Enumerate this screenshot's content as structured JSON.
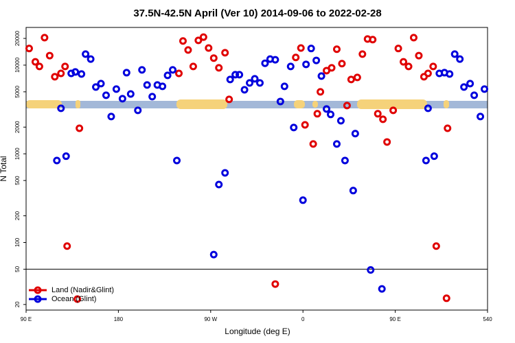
{
  "chart_data": {
    "type": "scatter",
    "title": "37.5N-42.5N April (Ver 10)   2014-09-06 to 2022-02-28",
    "x_label": "Longitude (deg E)",
    "y_label": "N Total",
    "log_y": true,
    "legend": "bottom-left",
    "reference_line": 50,
    "xlim": [
      90,
      540
    ],
    "xticks": [
      {
        "value": 90,
        "label": "90 E"
      },
      180,
      {
        "value": 270,
        "label": "90 W"
      },
      {
        "value": 360,
        "label": "0"
      },
      {
        "value": 450,
        "label": "90 E"
      },
      540
    ],
    "ylim": [
      17.3,
      26600
    ],
    "yticks": [
      20,
      50,
      100,
      200,
      500,
      1000,
      2000,
      5000,
      10000,
      20000
    ],
    "series": [
      {
        "name": "Land (Nadir&Glint)",
        "color": "#e00000",
        "x": [
          93,
          99,
          103,
          108,
          113,
          118,
          124,
          128,
          130,
          140,
          142,
          239,
          243,
          248,
          253,
          258,
          263,
          268,
          273,
          278,
          284,
          288,
          333,
          353,
          358,
          362,
          370,
          374,
          377,
          383,
          388,
          393,
          398,
          403,
          407,
          413,
          418,
          423,
          428,
          433,
          438,
          442,
          448,
          453,
          458,
          463,
          468,
          473,
          478,
          482,
          487,
          490,
          500,
          501
        ],
        "values": [
          15400,
          10900,
          9660,
          20400,
          12800,
          7390,
          8070,
          9660,
          91,
          23,
          1940,
          8070,
          18700,
          14800,
          9660,
          19000,
          20700,
          15600,
          12000,
          9320,
          13800,
          4110,
          34,
          12200,
          15600,
          2120,
          1290,
          2830,
          5000,
          8670,
          9320,
          15100,
          10400,
          3500,
          6890,
          7260,
          13300,
          19700,
          19400,
          2830,
          2450,
          1360,
          3090,
          15400,
          10900,
          9660,
          20400,
          12800,
          7390,
          8070,
          9660,
          91,
          23.5,
          1940
        ]
      },
      {
        "name": "Ocean (Glint)",
        "color": "#0000dd",
        "x": [
          120,
          124,
          129,
          134,
          138,
          144,
          148,
          153,
          158,
          163,
          168,
          173,
          178,
          184,
          188,
          192,
          199,
          203,
          208,
          213,
          218,
          223,
          228,
          233,
          237,
          273,
          278,
          284,
          289,
          294,
          298,
          303,
          308,
          313,
          318,
          323,
          328,
          333,
          338,
          342,
          348,
          351,
          360,
          363,
          368,
          373,
          378,
          383,
          387,
          393,
          397,
          401,
          409,
          411,
          426,
          437,
          480,
          482,
          488,
          493,
          498,
          503,
          508,
          513,
          517,
          523,
          527,
          533,
          537
        ],
        "values": [
          840,
          3260,
          940,
          8070,
          8370,
          7940,
          13300,
          11700,
          5660,
          6190,
          4570,
          2630,
          5370,
          4180,
          8220,
          4730,
          3090,
          8830,
          5970,
          4410,
          5970,
          5760,
          7660,
          8830,
          840,
          73,
          450,
          610,
          6890,
          7800,
          7800,
          5270,
          6300,
          7010,
          6300,
          10500,
          11700,
          11500,
          3890,
          5760,
          9660,
          1980,
          300,
          10200,
          15400,
          11300,
          7530,
          3200,
          2780,
          1290,
          2360,
          840,
          385,
          1690,
          49,
          30,
          840,
          3260,
          940,
          8070,
          8220,
          7940,
          13300,
          11700,
          5660,
          6190,
          4570,
          2630,
          5370
        ]
      }
    ]
  }
}
